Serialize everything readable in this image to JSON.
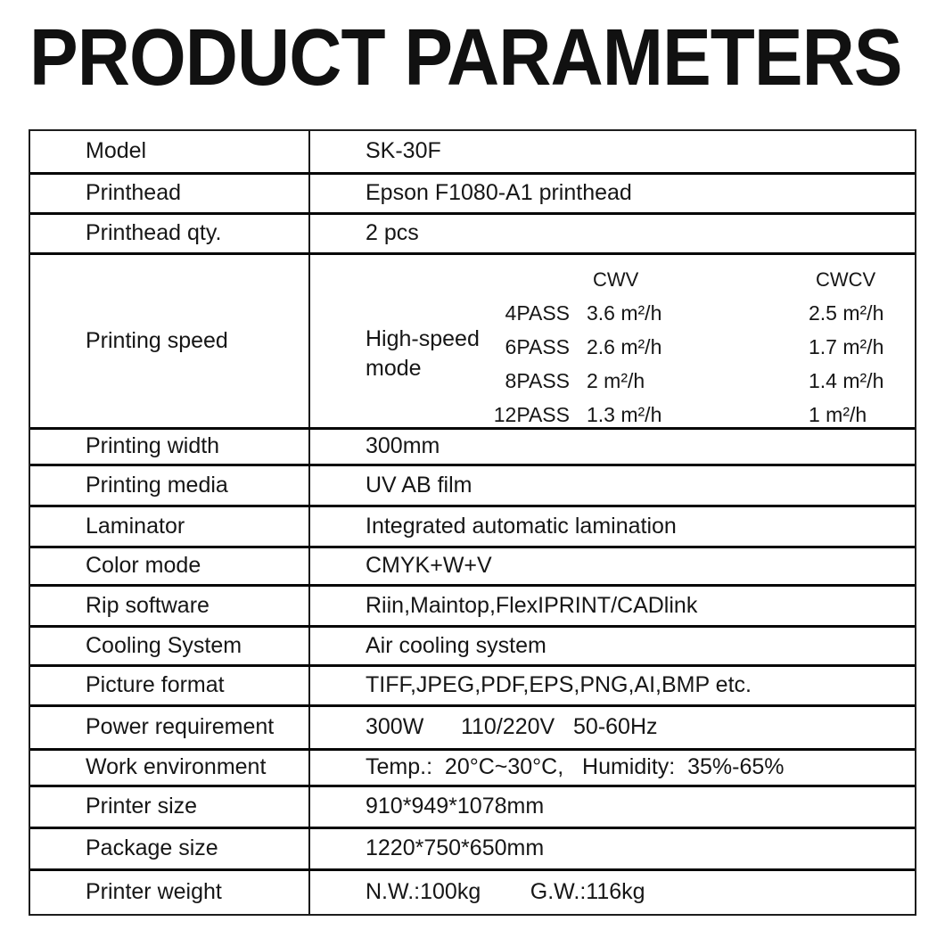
{
  "page": {
    "title": "PRODUCT PARAMETERS"
  },
  "colors": {
    "text": "#161616",
    "border": "#0a0a0a",
    "background": "#ffffff"
  },
  "table": {
    "rows": [
      {
        "label": "Model",
        "value": "SK-30F"
      },
      {
        "label": "Printhead",
        "value": "Epson F1080-A1 printhead"
      },
      {
        "label": "Printhead qty.",
        "value": "2 pcs"
      },
      {
        "label": "Printing speed",
        "value": ""
      },
      {
        "label": "Printing width",
        "value": "300mm"
      },
      {
        "label": "Printing media",
        "value": "UV AB film"
      },
      {
        "label": "Laminator",
        "value": "Integrated automatic lamination"
      },
      {
        "label": "Color mode",
        "value": "CMYK+W+V"
      },
      {
        "label": "Rip software",
        "value": "Riin,Maintop,FlexIPRINT/CADlink"
      },
      {
        "label": "Cooling System",
        "value": "Air cooling system"
      },
      {
        "label": "Picture format",
        "value": "TIFF,JPEG,PDF,EPS,PNG,AI,BMP etc."
      },
      {
        "label": "Power requirement",
        "value": "300W      110/220V   50-60Hz"
      },
      {
        "label": "Work environment",
        "value": "Temp.:  20°C~30°C,   Humidity:  35%-65%"
      },
      {
        "label": "Printer size",
        "value": "910*949*1078mm"
      },
      {
        "label": "Package size",
        "value": "1220*750*650mm"
      },
      {
        "label": "Printer weight",
        "value": "N.W.:100kg        G.W.:116kg"
      }
    ],
    "printing_speed": {
      "mode_label": "High-speed\nmode",
      "columns": [
        "CWV",
        "CWCV"
      ],
      "speeds": [
        {
          "pass": "4PASS",
          "cwv": "3.6 m²/h",
          "cwcv": "2.5 m²/h"
        },
        {
          "pass": "6PASS",
          "cwv": "2.6 m²/h",
          "cwcv": "1.7 m²/h"
        },
        {
          "pass": "8PASS",
          "cwv": "2 m²/h",
          "cwcv": "1.4 m²/h"
        },
        {
          "pass": "12PASS",
          "cwv": "1.3 m²/h",
          "cwcv": "1 m²/h"
        }
      ]
    }
  }
}
